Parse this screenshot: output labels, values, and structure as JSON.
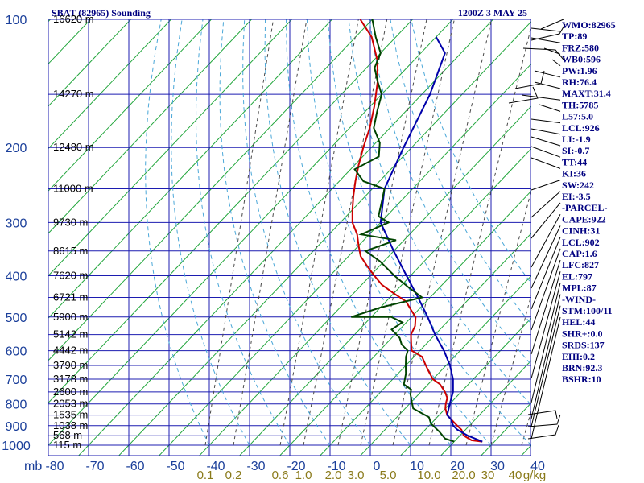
{
  "header": {
    "station": "SBAT (82965) Sounding",
    "time": "1200Z  3 MAY 25"
  },
  "chart_data": {
    "type": "line",
    "title": "SBAT (82965) Sounding",
    "subtitle": "1200Z  3 MAY 25",
    "xlabel": "",
    "ylabel": "mb",
    "ylim": [
      100,
      1000
    ],
    "xlim": [
      -80,
      40
    ],
    "temperature_ticks": [
      "-80",
      "-70",
      "-60",
      "-50",
      "-40",
      "-30",
      "-20",
      "-10",
      "0",
      "10",
      "20",
      "30",
      "40"
    ],
    "pressure_ticks": [
      "100",
      "200",
      "300",
      "400",
      "500",
      "600",
      "700",
      "800",
      "900",
      "1000"
    ],
    "height_labels": [
      {
        "p": 100,
        "label": "16620 m"
      },
      {
        "p": 150,
        "label": "14270 m"
      },
      {
        "p": 200,
        "label": "12480 m"
      },
      {
        "p": 250,
        "label": "11000 m"
      },
      {
        "p": 300,
        "label": "9730 m"
      },
      {
        "p": 350,
        "label": "8615 m"
      },
      {
        "p": 400,
        "label": "7620 m"
      },
      {
        "p": 450,
        "label": "6721 m"
      },
      {
        "p": 500,
        "label": "5900 m"
      },
      {
        "p": 550,
        "label": "5142 m"
      },
      {
        "p": 600,
        "label": "4442 m"
      },
      {
        "p": 650,
        "label": "3790 m"
      },
      {
        "p": 700,
        "label": "3178 m"
      },
      {
        "p": 750,
        "label": "2600 m"
      },
      {
        "p": 800,
        "label": "2053 m"
      },
      {
        "p": 850,
        "label": "1535 m"
      },
      {
        "p": 900,
        "label": "1038 m"
      },
      {
        "p": 950,
        "label": "568 m"
      },
      {
        "p": 1000,
        "label": "115 m"
      }
    ],
    "mixing_ratio_labels": [
      "0.1",
      "0.2",
      "0.6",
      "1.0",
      "2.0",
      "3.0",
      "5.0",
      "10.0",
      "20.0",
      "30",
      "40",
      "g/kg"
    ],
    "series": [
      {
        "key": "temperature",
        "color": "#cc0000",
        "points": [
          [
            27,
            981
          ],
          [
            24,
            974
          ],
          [
            21,
            950
          ],
          [
            19,
            920
          ],
          [
            17,
            900
          ],
          [
            14,
            870
          ],
          [
            12,
            850
          ],
          [
            10,
            820
          ],
          [
            9,
            800
          ],
          [
            8,
            775
          ],
          [
            6,
            750
          ],
          [
            3,
            720
          ],
          [
            0,
            700
          ],
          [
            -3,
            670
          ],
          [
            -5,
            650
          ],
          [
            -8,
            620
          ],
          [
            -12,
            600
          ],
          [
            -14,
            575
          ],
          [
            -16,
            550
          ],
          [
            -17,
            525
          ],
          [
            -19,
            500
          ],
          [
            -22,
            480
          ],
          [
            -25,
            460
          ],
          [
            -30,
            440
          ],
          [
            -35,
            420
          ],
          [
            -39,
            400
          ],
          [
            -43,
            380
          ],
          [
            -47,
            360
          ],
          [
            -50,
            340
          ],
          [
            -53,
            320
          ],
          [
            -57,
            300
          ],
          [
            -60,
            280
          ],
          [
            -63,
            260
          ],
          [
            -66,
            240
          ],
          [
            -69,
            220
          ],
          [
            -72,
            200
          ],
          [
            -75,
            180
          ],
          [
            -79,
            160
          ],
          [
            -84,
            140
          ],
          [
            -89,
            125
          ],
          [
            -96,
            110
          ],
          [
            -103,
            100
          ]
        ]
      },
      {
        "key": "parcel",
        "color": "#0000aa",
        "points": [
          [
            27,
            981
          ],
          [
            22,
            950
          ],
          [
            18,
            920
          ],
          [
            16,
            900
          ],
          [
            14,
            870
          ],
          [
            12,
            850
          ],
          [
            10,
            800
          ],
          [
            8,
            750
          ],
          [
            5,
            700
          ],
          [
            1,
            650
          ],
          [
            -4,
            600
          ],
          [
            -10,
            550
          ],
          [
            -16,
            500
          ],
          [
            -23,
            450
          ],
          [
            -31,
            400
          ],
          [
            -40,
            350
          ],
          [
            -50,
            300
          ],
          [
            -57,
            250
          ],
          [
            -62,
            200
          ],
          [
            -68,
            150
          ],
          [
            -74,
            120
          ],
          [
            -80,
            110
          ]
        ]
      },
      {
        "key": "dewpoint",
        "color": "#004400",
        "points": [
          [
            20,
            981
          ],
          [
            17,
            965
          ],
          [
            14,
            930
          ],
          [
            12,
            910
          ],
          [
            10,
            890
          ],
          [
            8,
            860
          ],
          [
            5,
            840
          ],
          [
            2,
            820
          ],
          [
            0,
            790
          ],
          [
            -2,
            760
          ],
          [
            -3,
            740
          ],
          [
            -6,
            720
          ],
          [
            -8,
            680
          ],
          [
            -10,
            650
          ],
          [
            -12,
            620
          ],
          [
            -13,
            600
          ],
          [
            -16,
            580
          ],
          [
            -18,
            560
          ],
          [
            -22,
            535
          ],
          [
            -21,
            515
          ],
          [
            -25,
            500
          ],
          [
            -35,
            500
          ],
          [
            -30,
            475
          ],
          [
            -22,
            450
          ],
          [
            -28,
            425
          ],
          [
            -34,
            400
          ],
          [
            -41,
            370
          ],
          [
            -47,
            350
          ],
          [
            -42,
            330
          ],
          [
            -52,
            320
          ],
          [
            -48,
            300
          ],
          [
            -52,
            290
          ],
          [
            -55,
            265
          ],
          [
            -57,
            250
          ],
          [
            -64,
            240
          ],
          [
            -69,
            225
          ],
          [
            -66,
            210
          ],
          [
            -69,
            195
          ],
          [
            -74,
            180
          ],
          [
            -77,
            165
          ],
          [
            -80,
            150
          ],
          [
            -84,
            140
          ],
          [
            -88,
            130
          ],
          [
            -90,
            120
          ],
          [
            -95,
            110
          ],
          [
            -100,
            100
          ]
        ]
      }
    ],
    "indices": [
      "WMO:82965",
      "TP:89",
      "FRZ:580",
      "WB0:596",
      "PW:1.96",
      "RH:76.4",
      "MAXT:31.4",
      "TH:5785",
      "L57:5.0",
      "LCL:926",
      "LI:-1.9",
      "SI:-0.7",
      "TT:44",
      "KI:36",
      "SW:242",
      "EI:-3.5",
      "-PARCEL-",
      "CAPE:922",
      "CINH:31",
      "LCL:902",
      "CAP:1.6",
      "LFC:827",
      "EL:797",
      "MPL:87",
      "-WIND-",
      "STM:100/11",
      "HEL:44",
      "SHR+:0.0",
      "SRDS:137",
      "EHI:0.2",
      "BRN:92.3",
      "BSHR:10"
    ],
    "legend": "none",
    "grid": true
  }
}
